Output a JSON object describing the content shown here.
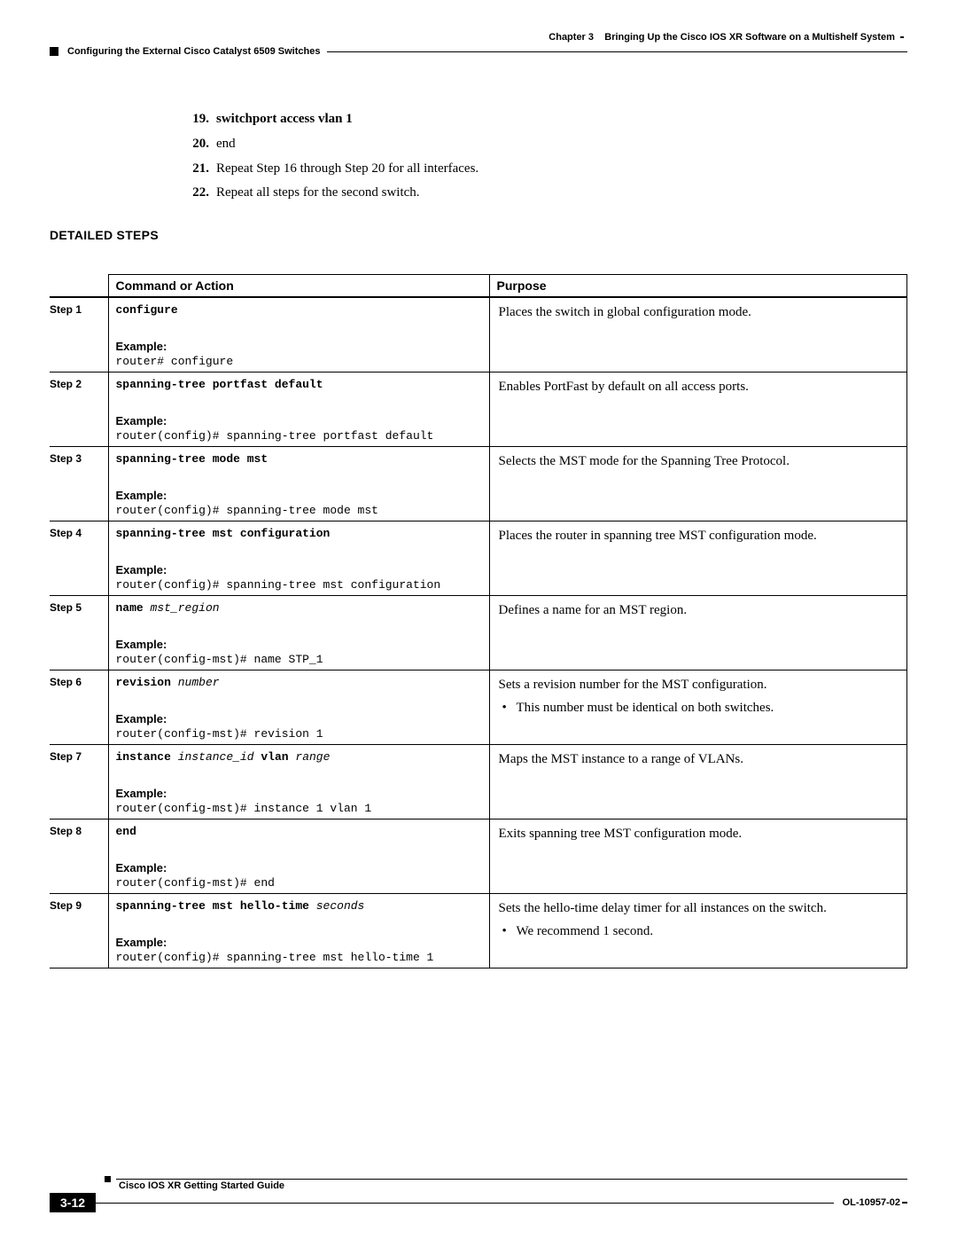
{
  "header": {
    "chapter_label": "Chapter 3",
    "chapter_title": "Bringing Up the Cisco IOS XR Software on a Multishelf System",
    "section_title": "Configuring the External Cisco Catalyst 6509 Switches"
  },
  "summary_steps": [
    {
      "num": "19.",
      "text": "switchport access vlan 1",
      "bold": true
    },
    {
      "num": "20.",
      "text": "end",
      "bold": false
    },
    {
      "num": "21.",
      "text": "Repeat Step 16 through Step 20 for all interfaces.",
      "bold": false
    },
    {
      "num": "22.",
      "text": "Repeat all steps for the second switch.",
      "bold": false
    }
  ],
  "section_heading": "DETAILED STEPS",
  "table": {
    "col_command": "Command or Action",
    "col_purpose": "Purpose",
    "example_label": "Example:",
    "rows": [
      {
        "step": "Step 1",
        "cmd_bold": "configure",
        "cmd_arg": "",
        "example": "router# configure",
        "purpose": "Places the switch in global configuration mode.",
        "bullets": []
      },
      {
        "step": "Step 2",
        "cmd_bold": "spanning-tree portfast default",
        "cmd_arg": "",
        "example": "router(config)# spanning-tree portfast default",
        "purpose": "Enables PortFast by default on all access ports.",
        "bullets": []
      },
      {
        "step": "Step 3",
        "cmd_bold": "spanning-tree mode mst",
        "cmd_arg": "",
        "example": "router(config)# spanning-tree mode mst",
        "purpose": "Selects the MST mode for the Spanning Tree Protocol.",
        "bullets": []
      },
      {
        "step": "Step 4",
        "cmd_bold": "spanning-tree mst configuration",
        "cmd_arg": "",
        "example": "router(config)# spanning-tree mst configuration",
        "purpose": "Places the router in spanning tree MST configuration mode.",
        "bullets": []
      },
      {
        "step": "Step 5",
        "cmd_bold": "name",
        "cmd_arg": "mst_region",
        "example": "router(config-mst)# name STP_1",
        "purpose": "Defines a name for an MST region.",
        "bullets": []
      },
      {
        "step": "Step 6",
        "cmd_bold": "revision",
        "cmd_arg": "number",
        "example": "router(config-mst)# revision 1",
        "purpose": "Sets a revision number for the MST configuration.",
        "bullets": [
          "This number must be identical on both switches."
        ]
      },
      {
        "step": "Step 7",
        "cmd_bold": "instance",
        "cmd_arg": "instance_id",
        "cmd_bold2": "vlan",
        "cmd_arg2": "range",
        "example": "router(config-mst)# instance 1 vlan 1",
        "purpose": "Maps the MST instance to a range of VLANs.",
        "bullets": []
      },
      {
        "step": "Step 8",
        "cmd_bold": "end",
        "cmd_arg": "",
        "example": "router(config-mst)# end",
        "purpose": "Exits spanning tree MST configuration mode.",
        "bullets": []
      },
      {
        "step": "Step 9",
        "cmd_bold": "spanning-tree mst hello-time",
        "cmd_arg": "seconds",
        "example": "router(config)# spanning-tree mst hello-time 1",
        "purpose": "Sets the hello-time delay timer for all instances on the switch.",
        "bullets": [
          "We recommend 1 second."
        ]
      }
    ]
  },
  "footer": {
    "guide": "Cisco IOS XR Getting Started Guide",
    "page": "3-12",
    "doc": "OL-10957-02"
  }
}
